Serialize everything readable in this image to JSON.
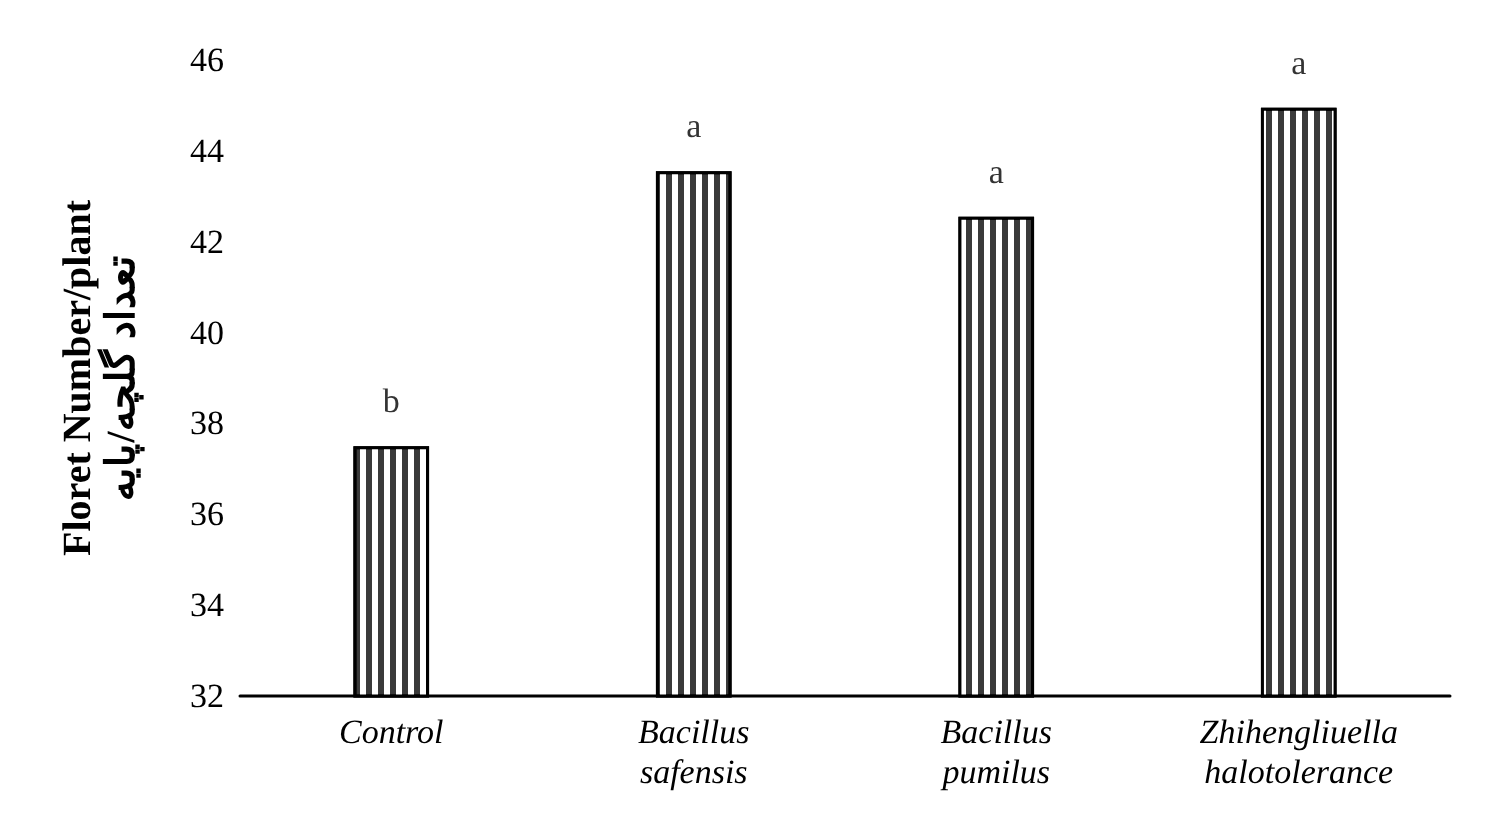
{
  "chart_data": {
    "type": "bar",
    "categories": [
      "Control",
      "Bacillus safensis",
      "Bacillus pumilus",
      "Zhihengliuella halotolerance"
    ],
    "values": [
      37.5,
      43.55,
      42.55,
      44.95
    ],
    "color": "#3a3a3a",
    "ylabel": "Floret Number/plant\nتعداد گلچه/پایه",
    "ylim": [
      32,
      46
    ],
    "yticks": [
      32,
      34,
      36,
      38,
      40,
      42,
      44,
      46
    ],
    "grid": false,
    "annotations": [
      {
        "text": "b",
        "x": "Control",
        "y": 37.5
      },
      {
        "text": "a",
        "x": "Bacillus safensis",
        "y": 43.55
      },
      {
        "text": "a",
        "x": "Bacillus pumilus",
        "y": 42.55
      },
      {
        "text": "a",
        "x": "Zhihengliuella halotolerance",
        "y": 44.95
      }
    ]
  }
}
